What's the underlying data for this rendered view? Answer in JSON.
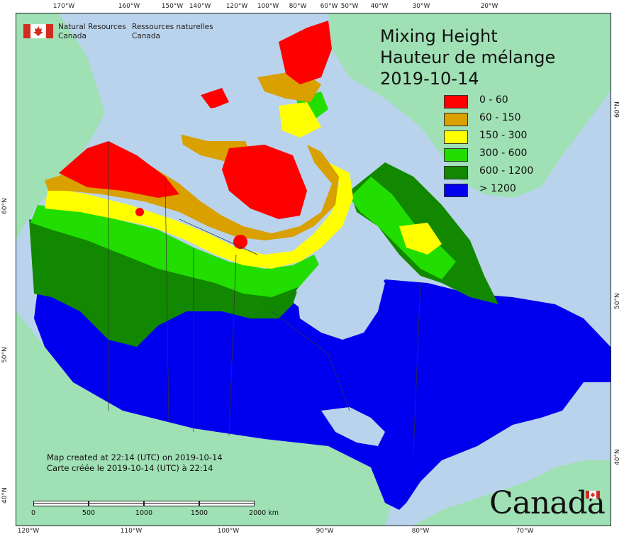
{
  "title": {
    "line1": "Mixing Height",
    "line2": "Hauteur de mélange",
    "date": "2019-10-14"
  },
  "legend": [
    {
      "label": "0 - 60",
      "color": "#ff0000"
    },
    {
      "label": "60 - 150",
      "color": "#d9a000"
    },
    {
      "label": "150 - 300",
      "color": "#ffff00"
    },
    {
      "label": "300 - 600",
      "color": "#22dd00"
    },
    {
      "label": "600 - 1200",
      "color": "#118800"
    },
    {
      "label": "> 1200",
      "color": "#0000ee"
    }
  ],
  "organization": {
    "en_line1": "Natural Resources",
    "en_line2": "Canada",
    "fr_line1": "Ressources naturelles",
    "fr_line2": "Canada"
  },
  "created": {
    "en": "Map created at 22:14 (UTC) on 2019-10-14",
    "fr": "Carte créée le 2019-10-14 (UTC) à 22:14"
  },
  "scale": {
    "labels": [
      "0",
      "500",
      "1000",
      "1500",
      "2000 km"
    ]
  },
  "wordmark": "Canada",
  "ticks": {
    "top": [
      "170°W",
      "160°W",
      "150°W",
      "140°W",
      "120°W",
      "100°W",
      "80°W",
      "60°W",
      "50°W",
      "40°W",
      "30°W",
      "20°W"
    ],
    "bottom": [
      "120°W",
      "110°W",
      "100°W",
      "90°W",
      "80°W",
      "70°W"
    ],
    "left": [
      "60°N",
      "50°N",
      "40°N"
    ],
    "right": [
      "60°N",
      "50°N",
      "40°N"
    ]
  },
  "colors": {
    "ocean": "#b9d3ec",
    "land_outside": "#9fe0b4",
    "lakes": "#b9d3ec"
  }
}
